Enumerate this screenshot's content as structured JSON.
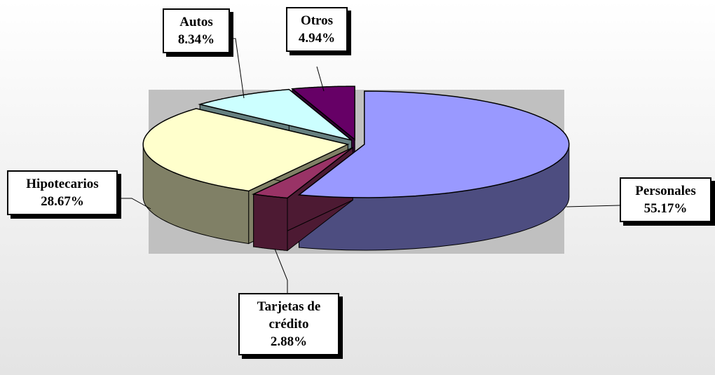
{
  "chart_data": {
    "type": "pie",
    "categories": [
      "Personales",
      "Tarjetas de crédito",
      "Hipotecarios",
      "Autos",
      "Otros"
    ],
    "values": [
      55.17,
      2.88,
      28.67,
      8.34,
      4.94
    ],
    "value_labels": [
      "55.17%",
      "2.88%",
      "28.67%",
      "8.34%",
      "4.94%"
    ],
    "colors": [
      "#9999ff",
      "#993366",
      "#ffffcc",
      "#ccffff",
      "#660066"
    ]
  }
}
